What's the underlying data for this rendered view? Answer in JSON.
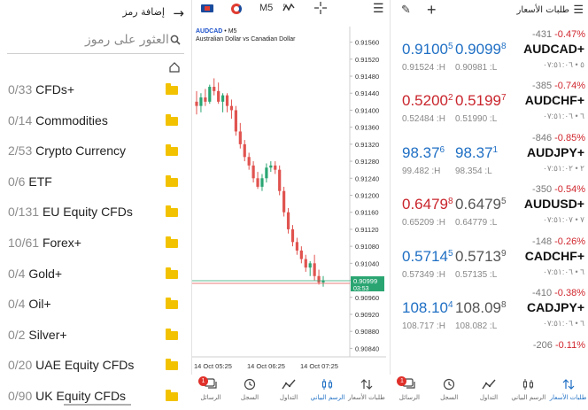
{
  "symbols_panel": {
    "title": "إضافة رمز",
    "search_placeholder": "العثور على رموز",
    "groups": [
      {
        "count": "0/33",
        "name": "CFDs+"
      },
      {
        "count": "0/14",
        "name": "Commodities"
      },
      {
        "count": "2/53",
        "name": "Crypto Currency"
      },
      {
        "count": "0/6",
        "name": "ETF"
      },
      {
        "count": "0/131",
        "name": "EU Equity CFDs"
      },
      {
        "count": "10/61",
        "name": "Forex+"
      },
      {
        "count": "0/4",
        "name": "Gold+"
      },
      {
        "count": "0/4",
        "name": "Oil+"
      },
      {
        "count": "0/2",
        "name": "Silver+"
      },
      {
        "count": "0/20",
        "name": "UAE Equity CFDs"
      },
      {
        "count": "0/90",
        "name": "UK Equity CFDs"
      }
    ]
  },
  "chart_panel": {
    "timeframe": "M5",
    "symbol_header": "AUDCAD",
    "timeframe_header": "M5",
    "description": "Australian Dollar vs Canadian Dollar",
    "current_price_label": "0.90999",
    "countdown_label": "03:53",
    "colors": {
      "bull": "#2aa572",
      "bear": "#e0534f",
      "price_line": "#2aa572",
      "ask_line": "#e0534f"
    }
  },
  "chart_data": {
    "type": "candlestick",
    "title": "",
    "symbol": "AUDCAD",
    "timeframe": "M5",
    "y_ticks": [
      "0.91560",
      "0.91520",
      "0.91480",
      "0.91440",
      "0.91400",
      "0.91360",
      "0.91320",
      "0.91280",
      "0.91240",
      "0.91200",
      "0.91160",
      "0.91120",
      "0.91080",
      "0.91040",
      "0.91000",
      "0.90960",
      "0.90920",
      "0.90880",
      "0.90840"
    ],
    "x_ticks": [
      "14 Oct 05:25",
      "14 Oct 06:25",
      "14 Oct 07:25"
    ],
    "ylim": [
      0.9082,
      0.9158
    ],
    "candles": [
      {
        "o": 0.9142,
        "h": 0.91445,
        "l": 0.9139,
        "c": 0.9141
      },
      {
        "o": 0.9141,
        "h": 0.9144,
        "l": 0.91395,
        "c": 0.9143
      },
      {
        "o": 0.9143,
        "h": 0.9145,
        "l": 0.9141,
        "c": 0.9142
      },
      {
        "o": 0.9142,
        "h": 0.9146,
        "l": 0.91415,
        "c": 0.91455
      },
      {
        "o": 0.91455,
        "h": 0.91475,
        "l": 0.91435,
        "c": 0.91445
      },
      {
        "o": 0.91445,
        "h": 0.91465,
        "l": 0.91415,
        "c": 0.9142
      },
      {
        "o": 0.9142,
        "h": 0.9144,
        "l": 0.91395,
        "c": 0.91435
      },
      {
        "o": 0.91435,
        "h": 0.9144,
        "l": 0.91395,
        "c": 0.9141
      },
      {
        "o": 0.9141,
        "h": 0.91425,
        "l": 0.9138,
        "c": 0.914
      },
      {
        "o": 0.914,
        "h": 0.9141,
        "l": 0.9134,
        "c": 0.9135
      },
      {
        "o": 0.9135,
        "h": 0.9137,
        "l": 0.9131,
        "c": 0.9132
      },
      {
        "o": 0.9132,
        "h": 0.9133,
        "l": 0.9128,
        "c": 0.9129
      },
      {
        "o": 0.9129,
        "h": 0.913,
        "l": 0.9126,
        "c": 0.9127
      },
      {
        "o": 0.9127,
        "h": 0.9128,
        "l": 0.9123,
        "c": 0.9124
      },
      {
        "o": 0.9124,
        "h": 0.91255,
        "l": 0.91215,
        "c": 0.9122
      },
      {
        "o": 0.9122,
        "h": 0.9125,
        "l": 0.9121,
        "c": 0.9124
      },
      {
        "o": 0.9124,
        "h": 0.91275,
        "l": 0.9123,
        "c": 0.91265
      },
      {
        "o": 0.91265,
        "h": 0.9128,
        "l": 0.91255,
        "c": 0.9127
      },
      {
        "o": 0.9127,
        "h": 0.9128,
        "l": 0.9125,
        "c": 0.9126
      },
      {
        "o": 0.9126,
        "h": 0.9127,
        "l": 0.912,
        "c": 0.9121
      },
      {
        "o": 0.9121,
        "h": 0.9122,
        "l": 0.9115,
        "c": 0.9116
      },
      {
        "o": 0.9116,
        "h": 0.9117,
        "l": 0.9111,
        "c": 0.9112
      },
      {
        "o": 0.9112,
        "h": 0.9113,
        "l": 0.9108,
        "c": 0.9109
      },
      {
        "o": 0.9109,
        "h": 0.911,
        "l": 0.9106,
        "c": 0.9107
      },
      {
        "o": 0.9107,
        "h": 0.9108,
        "l": 0.9104,
        "c": 0.9105
      },
      {
        "o": 0.9105,
        "h": 0.9106,
        "l": 0.9102,
        "c": 0.9103
      },
      {
        "o": 0.9103,
        "h": 0.91045,
        "l": 0.9101,
        "c": 0.9104
      },
      {
        "o": 0.9104,
        "h": 0.9106,
        "l": 0.91,
        "c": 0.9101
      },
      {
        "o": 0.9101,
        "h": 0.91025,
        "l": 0.9099,
        "c": 0.90995
      },
      {
        "o": 0.90995,
        "h": 0.9101,
        "l": 0.90985,
        "c": 0.91
      }
    ]
  },
  "quotes_panel": {
    "title": "طلبات الأسعار",
    "quotes": [
      {
        "change_pts": "-431",
        "change_pct": "-0.47%",
        "symbol": "AUDCAD+",
        "meta": "٥ • ٠٧:٥١:٠٦",
        "bid_main": "0.9100",
        "bid_sup": "5",
        "ask_main": "0.9099",
        "ask_sup": "8",
        "bid_color": "blue",
        "ask_color": "blue",
        "low": "0.91524 :H",
        "high": "0.90981 :L"
      },
      {
        "change_pts": "-385",
        "change_pct": "-0.74%",
        "symbol": "AUDCHF+",
        "meta": "٦ • ٠٧:٥١:٠٦",
        "bid_main": "0.5200",
        "bid_sup": "2",
        "ask_main": "0.5199",
        "ask_sup": "7",
        "bid_color": "red",
        "ask_color": "red",
        "low": "0.52484 :H",
        "high": "0.51990 :L"
      },
      {
        "change_pts": "-846",
        "change_pct": "-0.85%",
        "symbol": "AUDJPY+",
        "meta": "٢ • ٠٧:٥١:٠٢",
        "bid_main": "98.37",
        "bid_sup": "6",
        "ask_main": "98.37",
        "ask_sup": "1",
        "bid_color": "blue",
        "ask_color": "blue",
        "low": "99.482 :H",
        "high": "98.354 :L"
      },
      {
        "change_pts": "-350",
        "change_pct": "-0.54%",
        "symbol": "AUDUSD+",
        "meta": "٧ • ٠٧:٥١:٠٧",
        "bid_main": "0.6479",
        "bid_sup": "8",
        "ask_main": "0.6479",
        "ask_sup": "5",
        "bid_color": "red",
        "ask_color": "grey",
        "low": "0.65209 :H",
        "high": "0.64779 :L"
      },
      {
        "change_pts": "-148",
        "change_pct": "-0.26%",
        "symbol": "CADCHF+",
        "meta": "٦ • ٠٧:٥١:٠٦",
        "bid_main": "0.5714",
        "bid_sup": "5",
        "ask_main": "0.5713",
        "ask_sup": "9",
        "bid_color": "blue",
        "ask_color": "grey",
        "low": "0.57349 :H",
        "high": "0.57135 :L"
      },
      {
        "change_pts": "-410",
        "change_pct": "-0.38%",
        "symbol": "CADJPY+",
        "meta": "٦ • ٠٧:٥١:٠٦",
        "bid_main": "108.10",
        "bid_sup": "4",
        "ask_main": "108.09",
        "ask_sup": "8",
        "bid_color": "blue",
        "ask_color": "grey",
        "low": "108.717 :H",
        "high": "108.082 :L"
      },
      {
        "change_pts": "-206",
        "change_pct": "-0.11%",
        "symbol": "",
        "meta": "",
        "bid_main": "",
        "bid_sup": "",
        "ask_main": "",
        "ask_sup": "",
        "bid_color": "blue",
        "ask_color": "grey",
        "low": "",
        "high": ""
      }
    ]
  },
  "bottom_nav": {
    "messages_badge": "1",
    "items": [
      {
        "label": "الرسائل",
        "icon": "messages-icon"
      },
      {
        "label": "السجل",
        "icon": "history-icon"
      },
      {
        "label": "التداول",
        "icon": "trade-icon"
      },
      {
        "label": "الرسم البياني",
        "icon": "chart-icon"
      },
      {
        "label": "طلبات الأسعار",
        "icon": "quotes-icon"
      }
    ]
  }
}
